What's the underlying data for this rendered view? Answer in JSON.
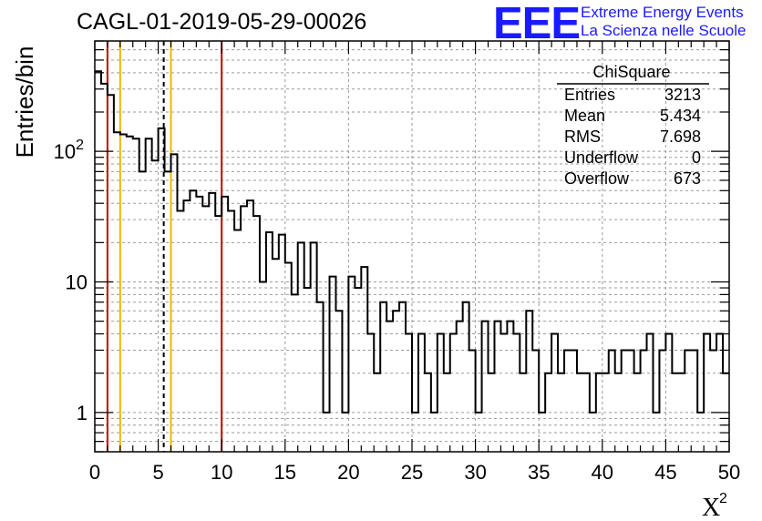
{
  "header": {
    "title": "CAGL-01-2019-05-29-00026",
    "logo_text": "EEE",
    "logo_line1": "Extreme Energy Events",
    "logo_line2": "La Scienza nelle Scuole",
    "logo_color": "#1a1aff"
  },
  "chart_data": {
    "type": "bar",
    "histogram": true,
    "ylabel": "Entries/bin",
    "xlabel": "X",
    "xlabel_superscript": "2",
    "xlim": [
      0,
      50
    ],
    "ylim": [
      0.5,
      700
    ],
    "yscale": "log",
    "grid": true,
    "bin_width": 0.5,
    "xticks": [
      "0",
      "5",
      "10",
      "15",
      "20",
      "25",
      "30",
      "35",
      "40",
      "45",
      "50"
    ],
    "yticks": [
      {
        "value": 1,
        "label": "1",
        "exp": ""
      },
      {
        "value": 10,
        "label": "10",
        "exp": ""
      },
      {
        "value": 100,
        "label": "10",
        "exp": "2"
      }
    ],
    "values": [
      410,
      330,
      270,
      140,
      135,
      130,
      125,
      70,
      125,
      85,
      150,
      70,
      95,
      35,
      42,
      50,
      45,
      38,
      48,
      32,
      45,
      35,
      25,
      38,
      42,
      32,
      10,
      24,
      15,
      23,
      14,
      8,
      20,
      9,
      20,
      7,
      1,
      11,
      6,
      1,
      11,
      9,
      13,
      4,
      2,
      7,
      5,
      6,
      7,
      4,
      1,
      4,
      2,
      1,
      4,
      2,
      4,
      5,
      7,
      3,
      1,
      5,
      2,
      5,
      4,
      5,
      4,
      2,
      6,
      3,
      1,
      2,
      4,
      2,
      3,
      3,
      2,
      2,
      1,
      2,
      2,
      3,
      2,
      3,
      3,
      2,
      3,
      4,
      1,
      3,
      4,
      2,
      2,
      3,
      3,
      1,
      4,
      3,
      4,
      2
    ],
    "vlines": [
      {
        "x": 1,
        "color": "#cc0000",
        "style": "solid"
      },
      {
        "x": 2,
        "color": "#f0b800",
        "style": "solid"
      },
      {
        "x": 5.434,
        "color": "#000000",
        "style": "dashed"
      },
      {
        "x": 6,
        "color": "#f0b800",
        "style": "solid"
      },
      {
        "x": 10,
        "color": "#cc0000",
        "style": "solid"
      }
    ],
    "stats": {
      "title": "ChiSquare",
      "rows": [
        {
          "label": "Entries",
          "value": "3213"
        },
        {
          "label": "Mean",
          "value": "5.434"
        },
        {
          "label": "RMS",
          "value": "7.698"
        },
        {
          "label": "Underflow",
          "value": "0"
        },
        {
          "label": "Overflow",
          "value": "673"
        }
      ]
    }
  }
}
